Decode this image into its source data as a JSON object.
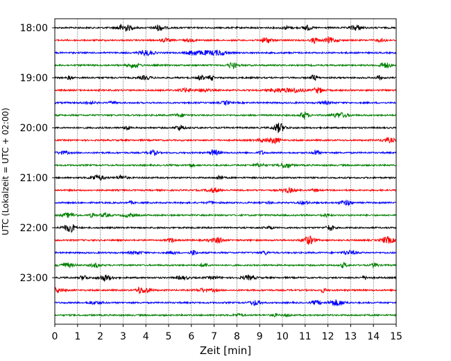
{
  "chart_data": {
    "type": "line",
    "subtype": "helicorder",
    "title": "",
    "xlabel": "Zeit  [min]",
    "ylabel": "UTC (Lokalzeit = UTC + 02:00)",
    "xlim": [
      0,
      15
    ],
    "x_ticks": [
      0,
      1,
      2,
      3,
      4,
      5,
      6,
      7,
      8,
      9,
      10,
      11,
      12,
      13,
      14,
      15
    ],
    "x_tick_labels": [
      "0",
      "1",
      "2",
      "3",
      "4",
      "5",
      "6",
      "7",
      "8",
      "9",
      "10",
      "11",
      "12",
      "13",
      "14",
      "15"
    ],
    "y_tick_labels": [
      "18:00",
      "19:00",
      "20:00",
      "21:00",
      "22:00",
      "23:00"
    ],
    "y_tick_rows": [
      0,
      4,
      8,
      12,
      16,
      20
    ],
    "trace_count": 24,
    "trace_minutes": 15,
    "start_time": "18:00",
    "grid": "vertical dotted",
    "trace_colors": [
      "#000000",
      "#ff0000",
      "#0000ff",
      "#008000"
    ]
  }
}
